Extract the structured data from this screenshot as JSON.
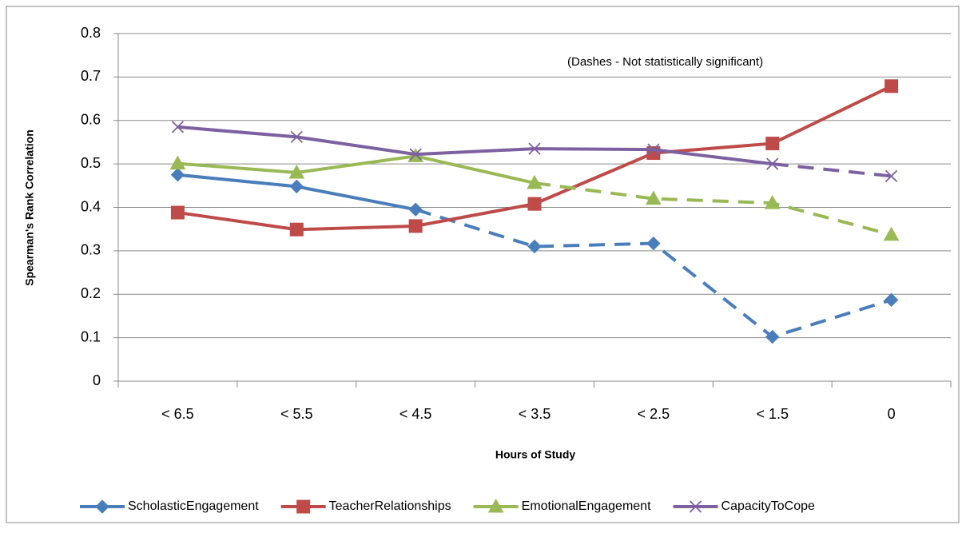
{
  "chart_data": {
    "type": "line",
    "annotation": "(Dashes - Not statistically significant)",
    "x_label": "Hours of Study",
    "y_label": "Spearman's Rank Correlation",
    "categories": [
      "< 6.5",
      "< 5.5",
      "< 4.5",
      "< 3.5",
      "< 2.5",
      "< 1.5",
      "0"
    ],
    "series": [
      {
        "name": "ScholasticEngagement",
        "color": "#4a7ebb",
        "marker": "diamond",
        "values": [
          0.475,
          0.448,
          0.395,
          0.31,
          0.317,
          0.102,
          0.187
        ],
        "segment_styles": [
          "solid",
          "solid",
          "dashed",
          "dashed",
          "dashed",
          "dashed"
        ]
      },
      {
        "name": "TeacherRelationships",
        "color": "#be4b48",
        "marker": "square",
        "values": [
          0.388,
          0.349,
          0.357,
          0.408,
          0.525,
          0.547,
          0.679
        ],
        "segment_styles": [
          "solid",
          "solid",
          "solid",
          "solid",
          "solid",
          "solid"
        ]
      },
      {
        "name": "EmotionalEngagement",
        "color": "#98b954",
        "marker": "triangle",
        "values": [
          0.501,
          0.48,
          0.518,
          0.456,
          0.42,
          0.41,
          0.337
        ],
        "segment_styles": [
          "solid",
          "solid",
          "solid",
          "dashed",
          "dashed",
          "dashed"
        ]
      },
      {
        "name": "CapacityToCope",
        "color": "#7d60a0",
        "marker": "x",
        "values": [
          0.585,
          0.562,
          0.522,
          0.535,
          0.533,
          0.5,
          0.472
        ],
        "segment_styles": [
          "solid",
          "solid",
          "solid",
          "solid",
          "solid",
          "dashed"
        ]
      }
    ],
    "ylim": [
      0,
      0.8
    ],
    "yticks": [
      {
        "value": 0,
        "label": "0"
      },
      0.1,
      0.2,
      0.3,
      0.4,
      0.5,
      0.6,
      0.7,
      0.8
    ],
    "grid": true,
    "legend": "bottom"
  }
}
